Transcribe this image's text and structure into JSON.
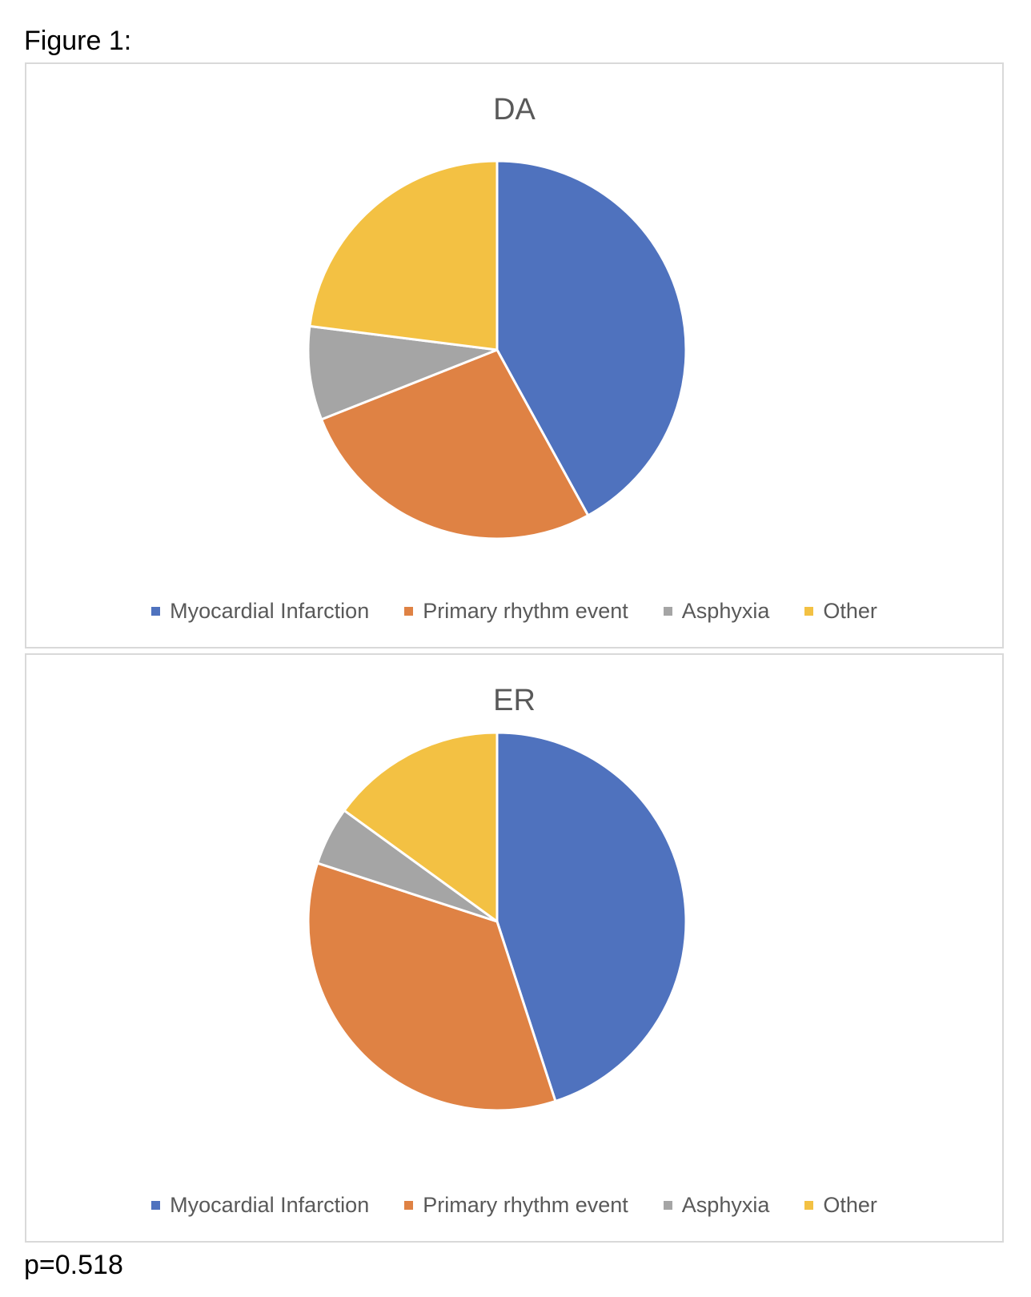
{
  "figure_label": "Figure 1:",
  "p_value": "p=0.518",
  "colors": {
    "Myocardial Infarction": "#4f72be",
    "Primary rhythm event": "#df8244",
    "Asphyxia": "#a5a5a5",
    "Other": "#f3c143"
  },
  "chart_data": [
    {
      "type": "pie",
      "title": "DA",
      "categories": [
        "Myocardial Infarction",
        "Primary rhythm event",
        "Asphyxia",
        "Other"
      ],
      "values": [
        42,
        27,
        8,
        23
      ],
      "legend": "bottom"
    },
    {
      "type": "pie",
      "title": "ER",
      "categories": [
        "Myocardial Infarction",
        "Primary rhythm event",
        "Asphyxia",
        "Other"
      ],
      "values": [
        45,
        35,
        5,
        15
      ],
      "legend": "bottom"
    }
  ]
}
